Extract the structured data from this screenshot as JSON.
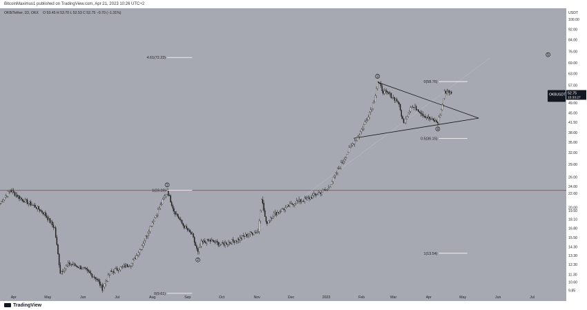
{
  "header": {
    "publisher": "BitcoinMaximus1 published on TradingView.com, Apr 21, 2023 10:26 UTC+2",
    "symbol": "OKB/Tether, 1D, OKX",
    "ohlc": "O 53.45  H 53.70  L 52.53  C 52.75  −0.70 (−1.31%)"
  },
  "footer": {
    "logo_text": "TradingView"
  },
  "colors": {
    "background": "#a6a9b1",
    "candle": "#1a1a1a",
    "resistance": "#c8323c",
    "price_tag": "#131722"
  },
  "price_tag": {
    "label": "OKBUSDT",
    "value": "52.75",
    "countdown": "15:33:27"
  },
  "chart_data": {
    "type": "candlestick",
    "title": "",
    "xlabel": "",
    "ylabel": "",
    "y_axis_label": "USDT",
    "scale": "log",
    "ylim": [
      9.0,
      110.0
    ],
    "x_range": [
      "2022-03-20",
      "2023-07-31"
    ],
    "y_ticks": [
      "9.85",
      "10.60",
      "11.30",
      "12.30",
      "13.30",
      "14.30",
      "15.50",
      "16.80",
      "18.10",
      "19.50",
      "20.00",
      "22.60",
      "24.00",
      "26.00",
      "29.00",
      "32.00",
      "35.00",
      "38.00",
      "41.50",
      "45.00",
      "49.00",
      "53.00",
      "57.00",
      "63.00",
      "69.00",
      "76.00",
      "84.00",
      "92.00",
      "100.00"
    ],
    "x_ticks": [
      "Apr",
      "May",
      "Jun",
      "Jul",
      "Aug",
      "Sep",
      "Oct",
      "Nov",
      "Dec",
      "2023",
      "Feb",
      "Mar",
      "Apr",
      "May",
      "Jun",
      "Jul"
    ],
    "x_tick_dates": [
      "2022-04-01",
      "2022-05-01",
      "2022-06-01",
      "2022-07-01",
      "2022-08-01",
      "2022-09-01",
      "2022-10-01",
      "2022-11-01",
      "2022-12-01",
      "2023-01-01",
      "2023-02-01",
      "2023-03-01",
      "2023-04-01",
      "2023-05-01",
      "2023-06-01",
      "2023-07-01"
    ],
    "price_path": [
      [
        "2022-03-20",
        20.8
      ],
      [
        "2022-03-29",
        23.2
      ],
      [
        "2022-04-08",
        21.5
      ],
      [
        "2022-04-20",
        20.2
      ],
      [
        "2022-04-28",
        19.0
      ],
      [
        "2022-05-07",
        16.8
      ],
      [
        "2022-05-12",
        11.5
      ],
      [
        "2022-05-20",
        12.4
      ],
      [
        "2022-06-01",
        11.9
      ],
      [
        "2022-06-13",
        10.9
      ],
      [
        "2022-06-18",
        10.0
      ],
      [
        "2022-06-25",
        11.5
      ],
      [
        "2022-07-05",
        12.0
      ],
      [
        "2022-07-14",
        12.4
      ],
      [
        "2022-07-22",
        14.2
      ],
      [
        "2022-07-30",
        17.0
      ],
      [
        "2022-08-06",
        19.5
      ],
      [
        "2022-08-12",
        22.0
      ],
      [
        "2022-08-14",
        23.2
      ],
      [
        "2022-08-20",
        19.5
      ],
      [
        "2022-08-28",
        17.2
      ],
      [
        "2022-09-05",
        15.8
      ],
      [
        "2022-09-10",
        13.6
      ],
      [
        "2022-09-13",
        14.8
      ],
      [
        "2022-09-20",
        15.1
      ],
      [
        "2022-10-01",
        14.6
      ],
      [
        "2022-10-15",
        15.2
      ],
      [
        "2022-10-25",
        16.0
      ],
      [
        "2022-11-02",
        16.3
      ],
      [
        "2022-11-05",
        21.8
      ],
      [
        "2022-11-09",
        17.5
      ],
      [
        "2022-11-15",
        18.8
      ],
      [
        "2022-11-25",
        19.8
      ],
      [
        "2022-12-05",
        21.0
      ],
      [
        "2022-12-15",
        21.5
      ],
      [
        "2022-12-24",
        22.5
      ],
      [
        "2023-01-02",
        23.4
      ],
      [
        "2023-01-10",
        27.0
      ],
      [
        "2023-01-16",
        30.0
      ],
      [
        "2023-01-22",
        33.5
      ],
      [
        "2023-01-30",
        37.5
      ],
      [
        "2023-02-06",
        43.0
      ],
      [
        "2023-02-12",
        50.0
      ],
      [
        "2023-02-15",
        58.8
      ],
      [
        "2023-02-20",
        54.0
      ],
      [
        "2023-02-26",
        52.5
      ],
      [
        "2023-03-05",
        49.5
      ],
      [
        "2023-03-10",
        41.0
      ],
      [
        "2023-03-16",
        47.5
      ],
      [
        "2023-03-22",
        46.5
      ],
      [
        "2023-03-28",
        44.0
      ],
      [
        "2023-04-05",
        42.0
      ],
      [
        "2023-04-09",
        41.5
      ],
      [
        "2023-04-12",
        46.0
      ],
      [
        "2023-04-15",
        53.5
      ],
      [
        "2023-04-18",
        54.5
      ],
      [
        "2023-04-21",
        52.75
      ]
    ],
    "resistance_line": {
      "price": 23.19
    },
    "fibonacci_levels": [
      {
        "label": "4.61(72.23)",
        "date": "2022-08-14",
        "price": 72.23,
        "end_date": "2022-09-05"
      },
      {
        "label": "1(23.19)",
        "date": "2022-08-14",
        "price": 23.19,
        "end_date": "2022-09-05"
      },
      {
        "label": "0(9.61)",
        "date": "2022-08-14",
        "price": 9.61,
        "end_date": "2022-09-05"
      },
      {
        "label": "0(58.76)",
        "date": "2023-04-10",
        "price": 58.76,
        "end_date": "2023-05-05"
      },
      {
        "label": "0.5(36.15)",
        "date": "2023-04-10",
        "price": 36.15,
        "end_date": "2023-05-05"
      },
      {
        "label": "1(13.54)",
        "date": "2023-04-10",
        "price": 13.54,
        "end_date": "2023-05-05"
      }
    ],
    "triangle": {
      "upper": [
        [
          "2023-02-15",
          58.5
        ],
        [
          "2023-05-15",
          43.0
        ]
      ],
      "lower": [
        [
          "2023-01-25",
          36.2
        ],
        [
          "2023-05-15",
          43.0
        ]
      ]
    },
    "projection_line": [
      [
        "2022-10-20",
        15.0
      ],
      [
        "2023-05-25",
        72.0
      ]
    ],
    "wave_labels": [
      {
        "label": "1",
        "date": "2022-08-14",
        "price": 24.3
      },
      {
        "label": "2",
        "date": "2022-09-10",
        "price": 12.8
      },
      {
        "label": "3",
        "date": "2023-02-15",
        "price": 61.5
      },
      {
        "label": "4",
        "date": "2023-04-09",
        "price": 39.2
      },
      {
        "label": "5",
        "date": "2023-07-15",
        "price": 74.0
      }
    ]
  }
}
